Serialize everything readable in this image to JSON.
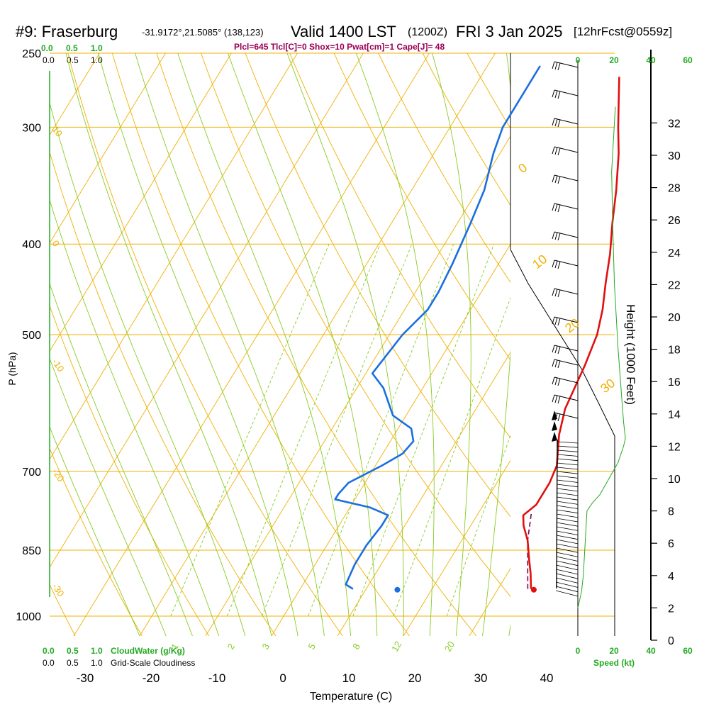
{
  "header": {
    "station": "#9: Fraserburg",
    "coords": "-31.9172°,21.5085° (138,123)",
    "valid": "Valid 1400 LST",
    "utc": "(1200Z)",
    "date": "FRI 3 Jan 2025",
    "forecast": "[12hrFcst@0559z]"
  },
  "indices": "Plcl=645 Tlcl[C]=0 Shox=10 Pwat[cm]=1 Cape[J]= 48",
  "labels": {
    "top_green": [
      "0.0",
      "0.5",
      "1.0"
    ],
    "top_black": [
      "0.0",
      "0.5",
      "1.0"
    ],
    "bottom_green": [
      "0.0",
      "0.5",
      "1.0"
    ],
    "bottom_black": [
      "0.0",
      "0.5",
      "1.0"
    ],
    "cloudwater": "CloudWater (g/Kg)",
    "cloudiness": "Grid-Scale Cloudiness",
    "speed": "Speed (kt)",
    "height_axis": "Height (1000 Feet)",
    "pressure_axis": "P (hPa)",
    "temp_axis": "Temperature (C)"
  },
  "colors": {
    "temp": "#e01010",
    "dewpoint": "#1a6fe0",
    "parcel": "#800050",
    "isotherm": "#f0b000",
    "dry_adiabat": "#f0b000",
    "moist_adiabat": "#88cc22",
    "mixing_ratio": "#88cc22",
    "green": "#22aa22",
    "indices": "#990055"
  },
  "chart_data": {
    "type": "line",
    "title": "#9: Fraserburg Valid 1400 LST (1200Z) FRI 3 Jan 2025 [12hrFcst@0559z]",
    "xlabel": "Temperature (C)",
    "ylabel": "P (hPa)",
    "x_ticks": [
      -30,
      -20,
      -10,
      0,
      10,
      20,
      30,
      40
    ],
    "pressure_ticks": [
      250,
      300,
      400,
      500,
      700,
      850,
      1000
    ],
    "height_ticks": [
      0,
      2,
      4,
      6,
      8,
      10,
      12,
      14,
      16,
      18,
      20,
      22,
      24,
      26,
      28,
      30,
      32
    ],
    "speed_ticks_bottom": [
      0,
      20,
      40,
      60
    ],
    "speed_ticks_top": [
      0,
      20,
      40,
      60
    ],
    "isotherm_labels": [
      0,
      10,
      20,
      30
    ],
    "dry_adiabat_labels": [
      10,
      0,
      -10,
      -20,
      -30
    ],
    "mixing_ratio_labels": [
      1,
      2,
      3,
      5,
      8,
      12,
      20
    ],
    "temperature_trace": [
      [
        35,
        935
      ],
      [
        33.5,
        900
      ],
      [
        32,
        870
      ],
      [
        30,
        830
      ],
      [
        28,
        800
      ],
      [
        27,
        780
      ],
      [
        28,
        760
      ],
      [
        28,
        720
      ],
      [
        27.5,
        690
      ],
      [
        25,
        640
      ],
      [
        23.5,
        600
      ],
      [
        22.5,
        540
      ],
      [
        21.5,
        500
      ],
      [
        20,
        470
      ],
      [
        18,
        440
      ],
      [
        16,
        410
      ],
      [
        13.5,
        380
      ],
      [
        11,
        350
      ],
      [
        8,
        320
      ],
      [
        5.5,
        300
      ],
      [
        3,
        280
      ],
      [
        1,
        265
      ]
    ],
    "dewpoint_trace": [
      [
        8,
        935
      ],
      [
        6.5,
        925
      ],
      [
        6,
        880
      ],
      [
        6,
        840
      ],
      [
        6.5,
        800
      ],
      [
        6.5,
        780
      ],
      [
        3,
        765
      ],
      [
        -3,
        750
      ],
      [
        -3,
        740
      ],
      [
        -2.5,
        720
      ],
      [
        1,
        690
      ],
      [
        3,
        670
      ],
      [
        3.5,
        650
      ],
      [
        2,
        630
      ],
      [
        -2,
        610
      ],
      [
        -6,
        570
      ],
      [
        -9,
        550
      ],
      [
        -8,
        500
      ],
      [
        -6.5,
        470
      ],
      [
        -6.5,
        450
      ],
      [
        -7,
        420
      ],
      [
        -8,
        380
      ],
      [
        -9,
        350
      ],
      [
        -11,
        320
      ],
      [
        -12,
        300
      ],
      [
        -12,
        270
      ],
      [
        -12,
        258
      ]
    ],
    "parcel_trace": [
      [
        34.5,
        935
      ],
      [
        30,
        830
      ],
      [
        28,
        775
      ]
    ],
    "surface_temp_point": [
      35.5,
      937
    ],
    "surface_dewpoint_point": [
      14.8,
      937
    ],
    "wind_speed_profile": [
      [
        0,
        2
      ],
      [
        2,
        3
      ],
      [
        3,
        4
      ],
      [
        4,
        6
      ],
      [
        5,
        8
      ],
      [
        8,
        8.5
      ],
      [
        12,
        9
      ],
      [
        17,
        10
      ],
      [
        22,
        11
      ],
      [
        25,
        12
      ],
      [
        26,
        12.5
      ],
      [
        25,
        13.5
      ],
      [
        24,
        15
      ],
      [
        22,
        18
      ],
      [
        20,
        22
      ],
      [
        19,
        26
      ],
      [
        18.5,
        29
      ],
      [
        19,
        30
      ],
      [
        20,
        32
      ],
      [
        20.5,
        33
      ]
    ]
  }
}
